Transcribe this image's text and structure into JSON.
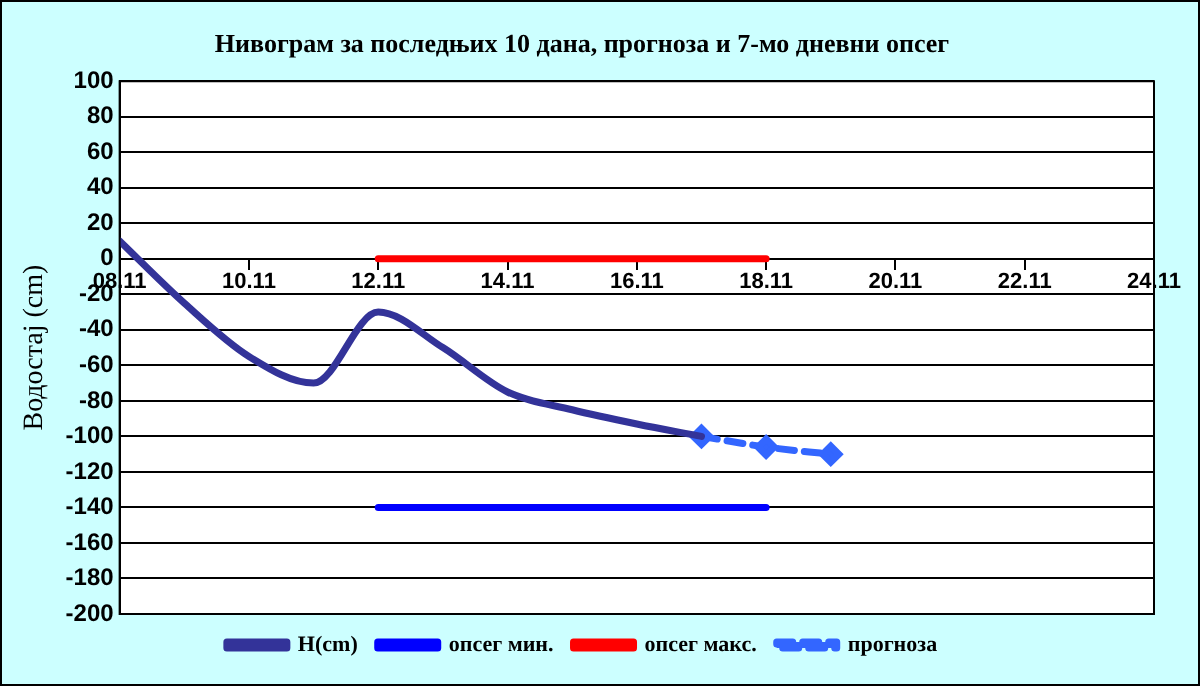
{
  "chart_data": {
    "type": "line",
    "title": "Нивограм за последњих 10 дана, прогноза и 7-мо дневни опсег",
    "ylabel": "Водостај (cm)",
    "xlim": [
      "--11-08",
      "--11-24"
    ],
    "xticks": [
      {
        "value": "--11-08",
        "label": "08.11"
      },
      {
        "value": "--11-10",
        "label": "10.11"
      },
      {
        "value": "--11-12",
        "label": "12.11"
      },
      {
        "value": "--11-14",
        "label": "14.11"
      },
      {
        "value": "--11-16",
        "label": "16.11"
      },
      {
        "value": "--11-18",
        "label": "18.11"
      },
      {
        "value": "--11-20",
        "label": "20.11"
      },
      {
        "value": "--11-22",
        "label": "22.11"
      },
      {
        "value": "--11-24",
        "label": "24.11"
      }
    ],
    "ylim": [
      -200,
      100
    ],
    "yticks": [
      -200,
      -180,
      -160,
      -140,
      -120,
      -100,
      -80,
      -60,
      -40,
      -20,
      0,
      20,
      40,
      60,
      80,
      100
    ],
    "grid": "y",
    "legend": "bottom",
    "series": [
      {
        "name": "H(cm)",
        "color": "#333399",
        "marker": "none",
        "line_style": "solid",
        "x": [
          "--11-08",
          "--11-09",
          "--11-10",
          "--11-11",
          "--11-12",
          "--11-13",
          "--11-14",
          "--11-15",
          "--11-16",
          "--11-17"
        ],
        "values": [
          10,
          -25,
          -55,
          -70,
          -30,
          -50,
          -75,
          -85,
          -93,
          -100
        ]
      },
      {
        "name": "опсег мин.",
        "color": "#0000ff",
        "marker": "none",
        "line_style": "solid",
        "x": [
          "--11-12",
          "--11-18"
        ],
        "values": [
          -140,
          -140
        ]
      },
      {
        "name": "опсег макс.",
        "color": "#ff0000",
        "marker": "none",
        "line_style": "solid",
        "x": [
          "--11-12",
          "--11-18"
        ],
        "values": [
          0,
          0
        ]
      },
      {
        "name": "прогноза",
        "color": "#3366ff",
        "marker": "diamond",
        "line_style": "dashed",
        "x": [
          "--11-17",
          "--11-18",
          "--11-19"
        ],
        "values": [
          -100,
          -106,
          -110
        ]
      }
    ]
  }
}
